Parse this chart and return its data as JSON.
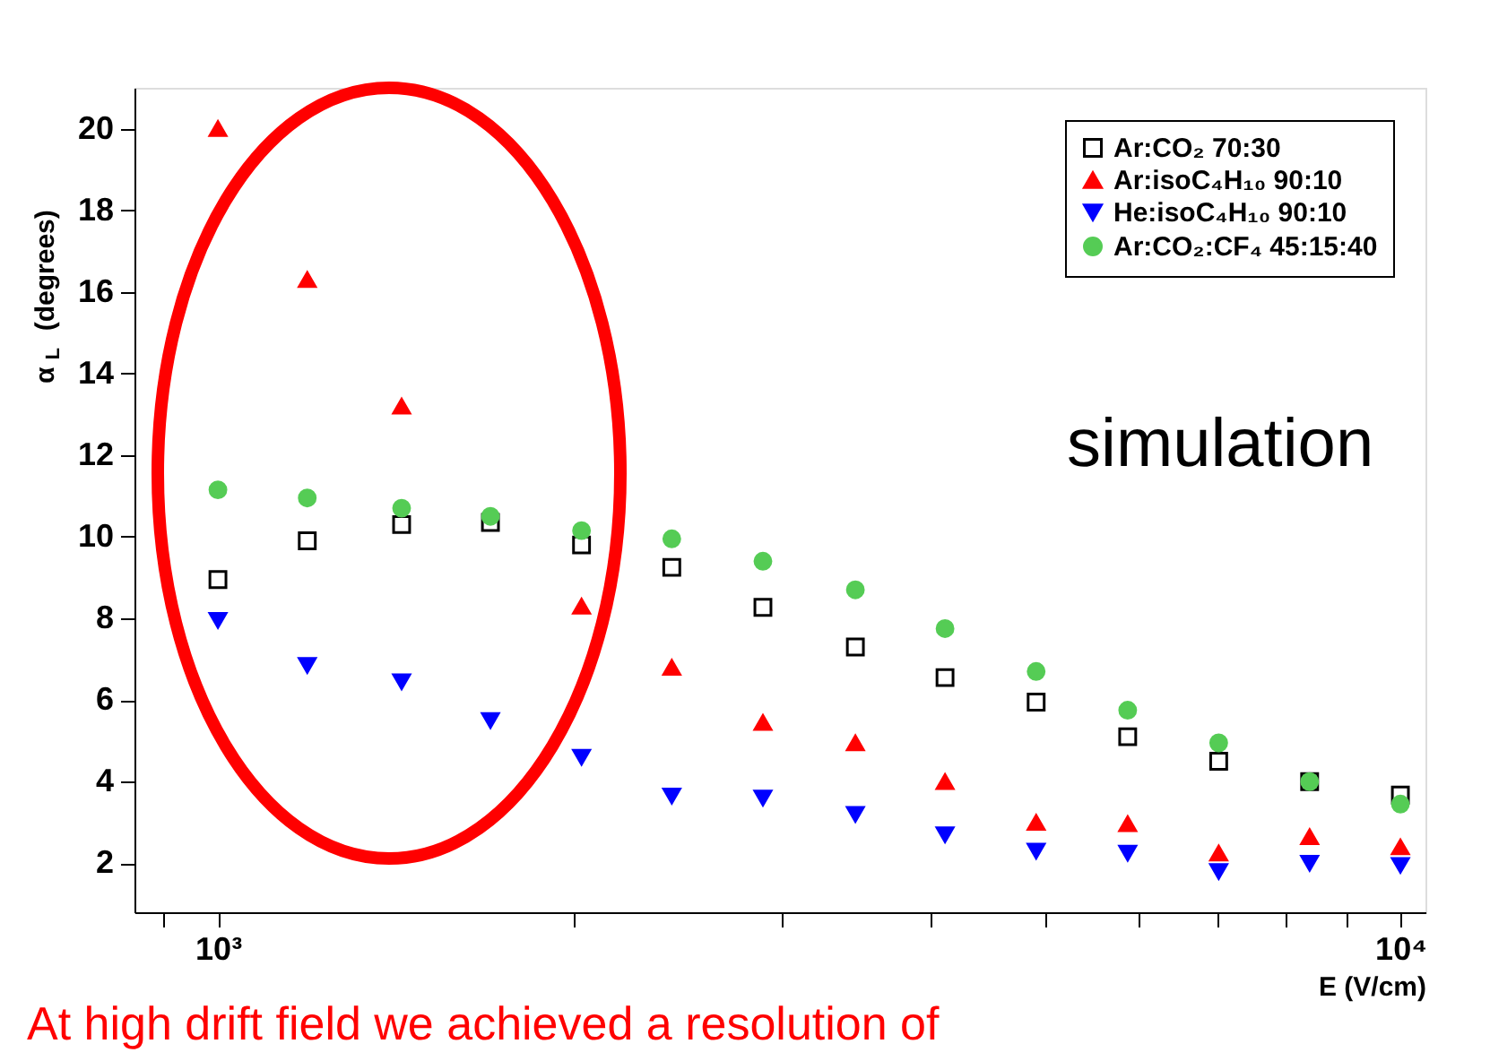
{
  "chart_data": {
    "type": "scatter",
    "x": [
      1000,
      1190,
      1430,
      1700,
      2030,
      2420,
      2890,
      3460,
      4120,
      4920,
      5880,
      7020,
      8380,
      10000
    ],
    "series": [
      {
        "name": "Ar:CO₂ 70:30",
        "color": "#000000",
        "marker": "square",
        "values": [
          8.95,
          9.9,
          10.3,
          10.35,
          9.8,
          9.25,
          8.27,
          7.3,
          6.55,
          5.95,
          5.1,
          4.5,
          4.0,
          3.67
        ]
      },
      {
        "name": "Ar:isoC₄H₁₀ 90:10",
        "color": "#ff0000",
        "marker": "triangle",
        "values": [
          20.0,
          16.3,
          13.2,
          null,
          8.3,
          6.8,
          5.45,
          4.95,
          4.0,
          3.0,
          2.97,
          2.25,
          2.65,
          2.4
        ]
      },
      {
        "name": "He:isoC₄H₁₀ 90:10",
        "color": "#0000ff",
        "marker": "triangle-down",
        "values": [
          7.95,
          6.85,
          6.45,
          5.5,
          4.6,
          3.65,
          3.6,
          3.2,
          2.7,
          2.3,
          2.25,
          1.8,
          2.0,
          1.95
        ]
      },
      {
        "name": "Ar:CO₂:CF₄ 45:15:40",
        "color": "#55cc55",
        "marker": "circle",
        "values": [
          11.15,
          10.95,
          10.7,
          10.5,
          10.15,
          9.95,
          9.4,
          8.7,
          7.75,
          6.7,
          5.75,
          4.95,
          4.0,
          3.45
        ]
      }
    ],
    "xlabel": "E (V/cm)",
    "ylabel": "α$_{L}$ (degrees)",
    "log": "x",
    "xlim": [
      850,
      10500
    ],
    "ylim": [
      0.8,
      21
    ],
    "xticks": [
      {
        "value": 900,
        "label": null
      },
      {
        "value": 1000,
        "label": "10³"
      },
      {
        "value": 2000,
        "label": null
      },
      {
        "value": 3000,
        "label": null
      },
      {
        "value": 4000,
        "label": null
      },
      {
        "value": 5000,
        "label": null
      },
      {
        "value": 6000,
        "label": null
      },
      {
        "value": 7000,
        "label": null
      },
      {
        "value": 8000,
        "label": null
      },
      {
        "value": 9000,
        "label": null
      },
      {
        "value": 10000,
        "label": "10⁴"
      }
    ],
    "yticks": [
      2,
      4,
      6,
      8,
      10,
      12,
      14,
      16,
      18,
      20
    ],
    "grid": false,
    "legend": "top right",
    "annotations": [
      "simulation",
      "At high drift field we achieved a resolution of"
    ]
  }
}
